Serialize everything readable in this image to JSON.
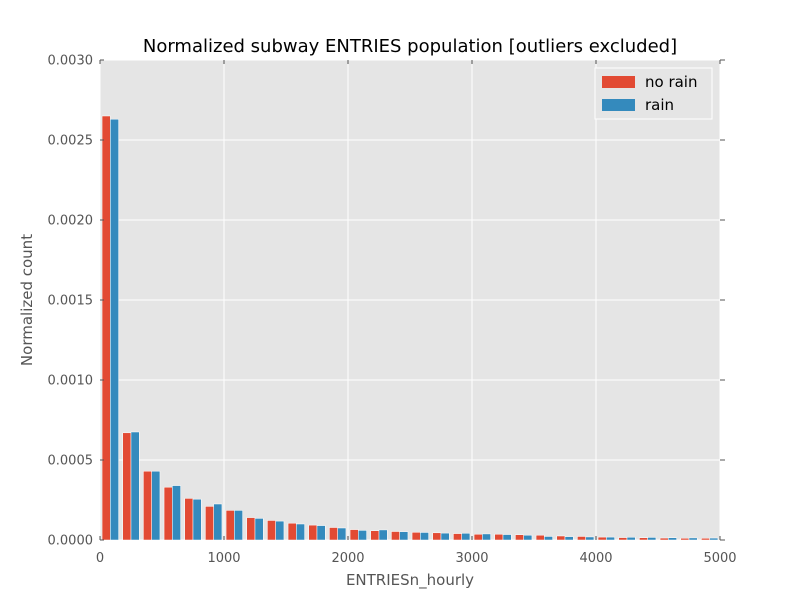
{
  "chart_data": {
    "type": "bar",
    "title": "Normalized subway ENTRIES population [outliers excluded]",
    "xlabel": "ENTRIESn_hourly",
    "ylabel": "Normalized count",
    "xlim": [
      0,
      5000
    ],
    "ylim": [
      0,
      0.003
    ],
    "x_ticks": [
      "0",
      "1000",
      "2000",
      "3000",
      "4000",
      "5000"
    ],
    "y_ticks": [
      "0.0000",
      "0.0005",
      "0.0010",
      "0.0015",
      "0.0020",
      "0.0025",
      "0.0030"
    ],
    "grid": true,
    "legend_position": "top-right",
    "bin_edges": [
      0,
      166.7,
      333.3,
      500,
      666.7,
      833.3,
      1000,
      1166.7,
      1333.3,
      1500,
      1666.7,
      1833.3,
      2000,
      2166.7,
      2333.3,
      2500,
      2666.7,
      2833.3,
      3000,
      3166.7,
      3333.3,
      3500,
      3666.7,
      3833.3,
      4000,
      4166.7,
      4333.3,
      4500,
      4666.7,
      4833.3,
      5000
    ],
    "series": [
      {
        "name": "no rain",
        "color": "#E24A33",
        "values": [
          0.00265,
          0.00067,
          0.00043,
          0.00033,
          0.00026,
          0.00021,
          0.000185,
          0.00014,
          0.000122,
          0.000105,
          9.3e-05,
          7.8e-05,
          6.5e-05,
          5.8e-05,
          5.3e-05,
          4.8e-05,
          4.5e-05,
          4e-05,
          3.6e-05,
          3.6e-05,
          3.3e-05,
          3e-05,
          2.5e-05,
          2.2e-05,
          1.8e-05,
          1.5e-05,
          1.4e-05,
          1.2e-05,
          1.1e-05,
          1.1e-05
        ]
      },
      {
        "name": "rain",
        "color": "#348ABD",
        "values": [
          0.00263,
          0.000675,
          0.00043,
          0.00034,
          0.000255,
          0.000225,
          0.000185,
          0.000135,
          0.000118,
          0.0001,
          9e-05,
          7.5e-05,
          6e-05,
          6.3e-05,
          5.2e-05,
          4.7e-05,
          4.3e-05,
          4.2e-05,
          3.8e-05,
          3.4e-05,
          3e-05,
          2.2e-05,
          2.1e-05,
          1.9e-05,
          1.8e-05,
          1.7e-05,
          1.6e-05,
          1.4e-05,
          1.3e-05,
          1.2e-05
        ]
      }
    ]
  }
}
